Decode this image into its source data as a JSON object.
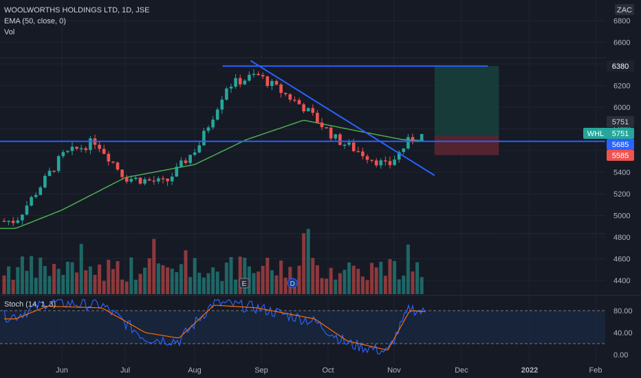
{
  "header": {
    "title": "WOOLWORTHS HOLDINGS LTD, 1D, JSE",
    "ema": "EMA (50, close, 0)",
    "vol": "Vol",
    "currency": "ZAC",
    "stoch": "Stoch (14, 1, 3)"
  },
  "price_tags": {
    "last": "5751",
    "symbol": "WHL",
    "symbol_price": "5751",
    "target": "6380",
    "entry": "5685",
    "stop": "5585"
  },
  "event_markers": [
    "E",
    "D"
  ],
  "colors": {
    "background": "#161a25",
    "up": "#26a69a",
    "down": "#ef5350",
    "ema": "#4caf50",
    "trendline": "#2962ff",
    "stoch_k": "#2962ff",
    "stoch_d": "#ff6d00",
    "profit_zone": "#173f3c",
    "loss_zone": "#5a2631"
  },
  "chart_data": {
    "type": "candlestick",
    "title": "WOOLWORTHS HOLDINGS LTD, 1D, JSE",
    "currency": "ZAC",
    "y_ticks": [
      4400,
      4600,
      4800,
      5000,
      5200,
      5400,
      5600,
      5800,
      6000,
      6200,
      6400,
      6600,
      6800
    ],
    "ylim": [
      4280,
      6900
    ],
    "x_ticks": [
      "Jun",
      "Jul",
      "Aug",
      "Sep",
      "Oct",
      "Nov",
      "Dec",
      "2022",
      "Feb"
    ],
    "trend_levels": {
      "horizontal_resistance": 6380,
      "horizontal_support": 5685,
      "descending_line": {
        "from": [
          "Aug 27",
          6430
        ],
        "to": [
          "Nov 19",
          5370
        ]
      }
    },
    "position": {
      "entry": 5685,
      "target": 6380,
      "stop": 5585
    },
    "ohlc_checkpoints": [
      {
        "date": "May 10",
        "close": 4950
      },
      {
        "date": "Jun 1",
        "close": 5550
      },
      {
        "date": "Jun 17",
        "close": 5690
      },
      {
        "date": "Jul 1",
        "close": 5350
      },
      {
        "date": "Jul 19",
        "close": 5300
      },
      {
        "date": "Aug 3",
        "close": 5650
      },
      {
        "date": "Aug 16",
        "close": 6200
      },
      {
        "date": "Aug 30",
        "close": 6300
      },
      {
        "date": "Sep 20",
        "close": 6000
      },
      {
        "date": "Oct 5",
        "close": 5700
      },
      {
        "date": "Oct 29",
        "close": 5450
      },
      {
        "date": "Nov 8",
        "close": 5700
      },
      {
        "date": "Nov 15",
        "close": 5751
      }
    ],
    "ema_50": [
      {
        "date": "May 10",
        "value": 4880
      },
      {
        "date": "Jun 1",
        "value": 5050
      },
      {
        "date": "Jul 1",
        "value": 5350
      },
      {
        "date": "Aug 1",
        "value": 5470
      },
      {
        "date": "Aug 25",
        "value": 5700
      },
      {
        "date": "Sep 20",
        "value": 5880
      },
      {
        "date": "Oct 15",
        "value": 5780
      },
      {
        "date": "Nov 5",
        "value": 5700
      },
      {
        "date": "Nov 15",
        "value": 5690
      }
    ],
    "stochastic": {
      "name": "Stoch (14, 1, 3)",
      "y_ticks": [
        0,
        40,
        80
      ],
      "bands": [
        20,
        80
      ],
      "checkpoints": [
        {
          "date": "May 10",
          "k": 70,
          "d": 65
        },
        {
          "date": "May 25",
          "k": 95,
          "d": 88
        },
        {
          "date": "Jun 20",
          "k": 90,
          "d": 85
        },
        {
          "date": "Jul 10",
          "k": 30,
          "d": 40
        },
        {
          "date": "Jul 25",
          "k": 25,
          "d": 30
        },
        {
          "date": "Aug 10",
          "k": 95,
          "d": 90
        },
        {
          "date": "Aug 30",
          "k": 85,
          "d": 85
        },
        {
          "date": "Sep 25",
          "k": 60,
          "d": 65
        },
        {
          "date": "Oct 10",
          "k": 20,
          "d": 25
        },
        {
          "date": "Oct 29",
          "k": 5,
          "d": 8
        },
        {
          "date": "Nov 8",
          "k": 85,
          "d": 80
        },
        {
          "date": "Nov 15",
          "k": 75,
          "d": 78
        }
      ]
    }
  }
}
